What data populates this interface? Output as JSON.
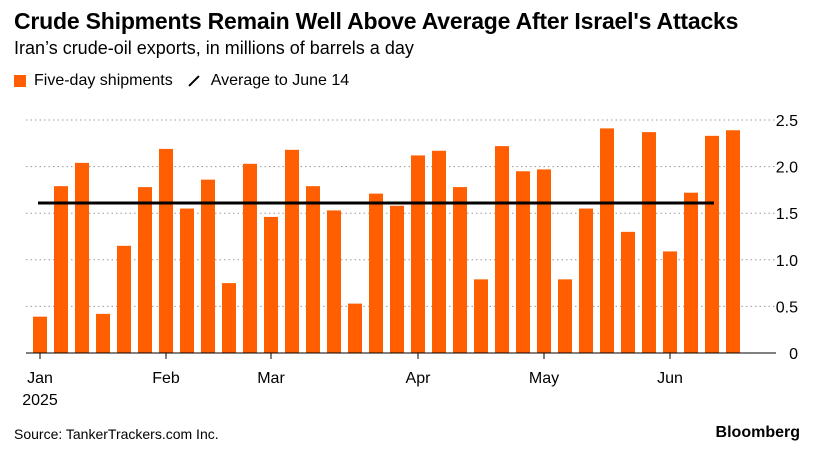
{
  "header": {
    "title": "Crude Shipments Remain Well Above Average After Israel's Attacks",
    "subtitle": "Iran’s crude-oil exports, in millions of barrels a day"
  },
  "legend": {
    "bars_label": "Five-day shipments",
    "line_label": "Average to June 14"
  },
  "footer": {
    "source": "Source: TankerTrackers.com Inc.",
    "brand": "Bloomberg"
  },
  "colors": {
    "bar": "#ff5f00",
    "average_line": "#000000",
    "grid": "#9a9a9a"
  },
  "chart_data": {
    "type": "bar",
    "title": "Crude Shipments Remain Well Above Average After Israel's Attacks",
    "subtitle": "Iran’s crude-oil exports, in millions of barrels a day",
    "ylabel": "",
    "ylim": [
      0,
      2.5
    ],
    "yticks": [
      0,
      0.5,
      1.0,
      1.5,
      2.0,
      2.5
    ],
    "ytick_labels": [
      "0",
      "0.5",
      "1.0",
      "1.5",
      "2.0",
      "2.5"
    ],
    "grid": "horizontal dotted",
    "x_ticks": [
      {
        "label": "Jan",
        "sublabel": "2025",
        "bar_index": 0
      },
      {
        "label": "Feb",
        "bar_index": 6
      },
      {
        "label": "Mar",
        "bar_index": 11
      },
      {
        "label": "Apr",
        "bar_index": 18
      },
      {
        "label": "May",
        "bar_index": 24
      },
      {
        "label": "Jun",
        "bar_index": 30
      }
    ],
    "series": [
      {
        "name": "Five-day shipments",
        "type": "bar",
        "values": [
          0.39,
          1.79,
          2.04,
          0.42,
          1.15,
          1.78,
          2.19,
          1.55,
          1.86,
          0.75,
          2.03,
          1.46,
          2.18,
          1.79,
          1.53,
          0.53,
          1.71,
          1.58,
          2.12,
          2.17,
          1.78,
          0.79,
          2.22,
          1.95,
          1.97,
          0.79,
          1.55,
          2.41,
          1.3,
          2.37,
          1.09,
          1.72,
          2.33,
          2.39
        ]
      },
      {
        "name": "Average to June 14",
        "type": "line",
        "value": 1.61,
        "x_range_bars": [
          0,
          32
        ]
      }
    ]
  }
}
